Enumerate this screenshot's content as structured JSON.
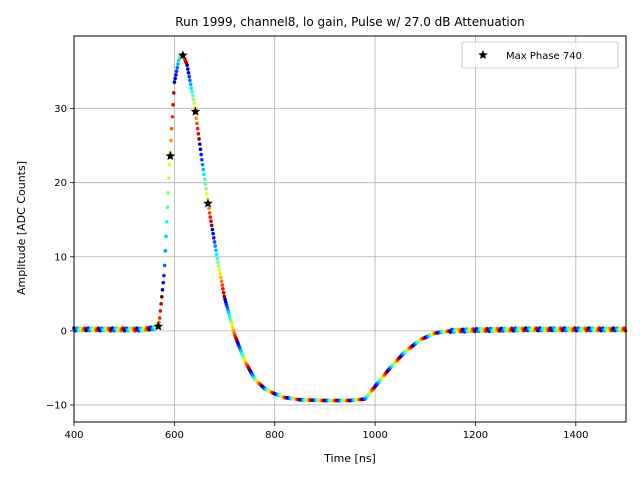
{
  "chart_data": {
    "type": "scatter",
    "title": "Run 1999, channel8, lo gain, Pulse w/ 27.0 dB Attenuation",
    "xlabel": "Time [ns]",
    "ylabel": "Amplitude [ADC Counts]",
    "xlim": [
      400,
      1500
    ],
    "ylim": [
      -12.3,
      39.8
    ],
    "xticks": [
      400,
      600,
      800,
      1000,
      1200,
      1400
    ],
    "yticks": [
      -10,
      0,
      10,
      20,
      30
    ],
    "grid": true,
    "legend": {
      "placement": "top-right",
      "entries": [
        "Max Phase 740"
      ]
    },
    "series": [
      {
        "name": "Max Phase 740",
        "marker": "star",
        "color": "#000000",
        "points": [
          [
            568,
            0.6
          ],
          [
            592,
            23.6
          ],
          [
            617,
            37.2
          ],
          [
            642,
            29.6
          ],
          [
            667,
            17.2
          ]
        ]
      },
      {
        "marker": "dot",
        "colormap": "jet",
        "waveform": [
          [
            400,
            0.2
          ],
          [
            540,
            0.2
          ],
          [
            560,
            0.4
          ],
          [
            570,
            1.2
          ],
          [
            580,
            8.0
          ],
          [
            590,
            22.0
          ],
          [
            600,
            33.5
          ],
          [
            610,
            37.0
          ],
          [
            617,
            37.2
          ],
          [
            625,
            36.0
          ],
          [
            640,
            30.5
          ],
          [
            655,
            23.0
          ],
          [
            670,
            16.0
          ],
          [
            685,
            10.0
          ],
          [
            700,
            4.5
          ],
          [
            720,
            -0.5
          ],
          [
            740,
            -4.0
          ],
          [
            760,
            -6.5
          ],
          [
            780,
            -7.8
          ],
          [
            800,
            -8.5
          ],
          [
            820,
            -9.0
          ],
          [
            850,
            -9.3
          ],
          [
            900,
            -9.4
          ],
          [
            950,
            -9.4
          ],
          [
            980,
            -9.2
          ],
          [
            1000,
            -7.5
          ],
          [
            1030,
            -5.0
          ],
          [
            1060,
            -2.8
          ],
          [
            1090,
            -1.2
          ],
          [
            1120,
            -0.3
          ],
          [
            1150,
            0.0
          ],
          [
            1200,
            0.1
          ],
          [
            1300,
            0.2
          ],
          [
            1400,
            0.2
          ],
          [
            1500,
            0.2
          ]
        ]
      }
    ]
  }
}
